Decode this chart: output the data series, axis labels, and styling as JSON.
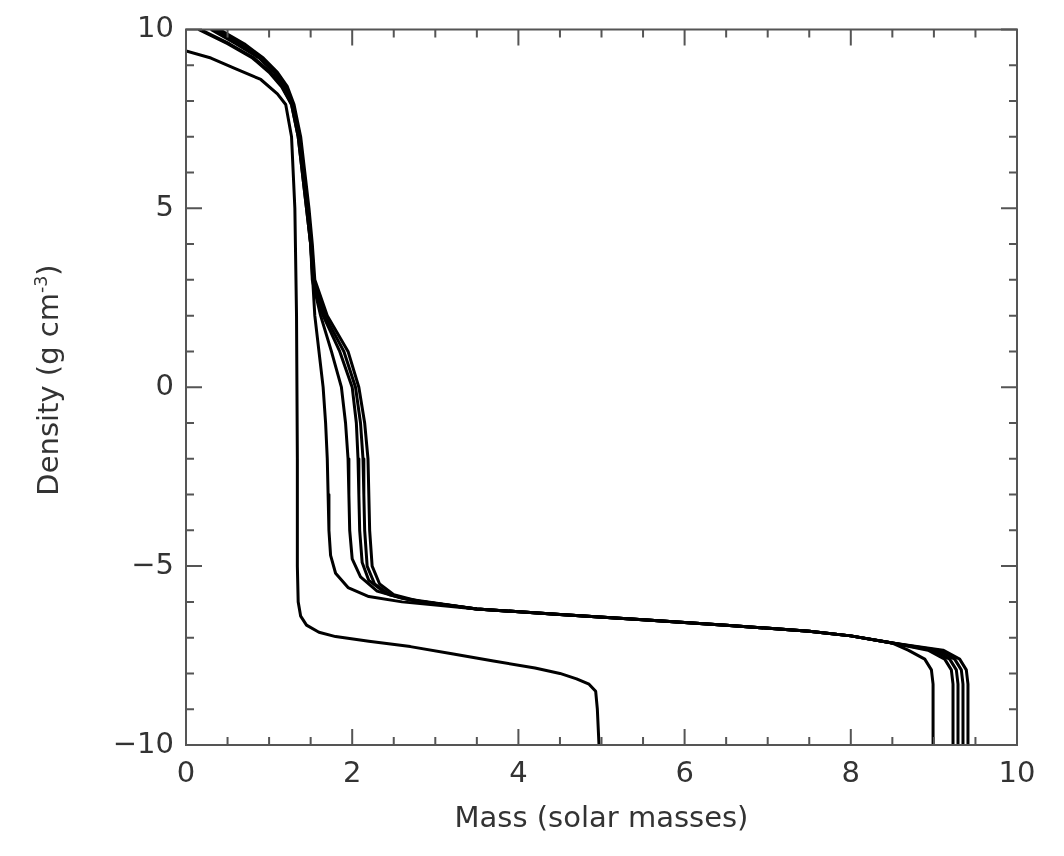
{
  "chart_data": {
    "type": "line",
    "xlabel": "Mass (solar masses)",
    "ylabel": "Density (g cm$^{-3}$)",
    "xlim": [
      0,
      10
    ],
    "ylim": [
      -10,
      10
    ],
    "xticks": [
      0,
      {
        "value": 0.5,
        "label": null
      },
      {
        "value": 1,
        "label": null
      },
      {
        "value": 1.5,
        "label": null
      },
      2,
      {
        "value": 2.5,
        "label": null
      },
      {
        "value": 3,
        "label": null
      },
      {
        "value": 3.5,
        "label": null
      },
      4,
      {
        "value": 4.5,
        "label": null
      },
      {
        "value": 5,
        "label": null
      },
      {
        "value": 5.5,
        "label": null
      },
      6,
      {
        "value": 6.5,
        "label": null
      },
      {
        "value": 7,
        "label": null
      },
      {
        "value": 7.5,
        "label": null
      },
      8,
      {
        "value": 8.5,
        "label": null
      },
      {
        "value": 9,
        "label": null
      },
      {
        "value": 9.5,
        "label": null
      },
      10
    ],
    "yticks": [
      -10,
      {
        "value": -9,
        "label": null
      },
      {
        "value": -8,
        "label": null
      },
      {
        "value": -7,
        "label": null
      },
      {
        "value": -6,
        "label": null
      },
      -5,
      {
        "value": -4,
        "label": null
      },
      {
        "value": -3,
        "label": null
      },
      {
        "value": -2,
        "label": null
      },
      {
        "value": -1,
        "label": null
      },
      0,
      {
        "value": 1,
        "label": null
      },
      {
        "value": 2,
        "label": null
      },
      {
        "value": 3,
        "label": null
      },
      {
        "value": 4,
        "label": null
      },
      5,
      {
        "value": 6,
        "label": null
      },
      {
        "value": 7,
        "label": null
      },
      {
        "value": 8,
        "label": null
      },
      {
        "value": 9,
        "label": null
      },
      10
    ],
    "grid": false,
    "legend": false,
    "marker": "none",
    "line_style": "solid",
    "series": [
      {
        "color": "#000000",
        "x": [
          0,
          0.3,
          0.6,
          0.9,
          1.1,
          1.2,
          1.27,
          1.31,
          1.33,
          1.34,
          1.34,
          1.35,
          1.38,
          1.45,
          1.6,
          1.8,
          2.2,
          2.7,
          3.2,
          3.7,
          4.2,
          4.5,
          4.7,
          4.85,
          4.93,
          4.95,
          4.97
        ],
        "values": [
          9.4,
          9.2,
          8.9,
          8.6,
          8.2,
          7.9,
          7,
          5,
          2,
          -2,
          -5,
          -6,
          -6.4,
          -6.65,
          -6.85,
          -6.97,
          -7.1,
          -7.25,
          -7.45,
          -7.65,
          -7.85,
          -8,
          -8.15,
          -8.3,
          -8.5,
          -9,
          -10
        ]
      },
      {
        "color": "#000000",
        "x": [
          0.15,
          0.5,
          0.8,
          1,
          1.15,
          1.27,
          1.35,
          1.4,
          1.45,
          1.5,
          1.55,
          1.6,
          1.65,
          1.68,
          1.7,
          1.71,
          1.72,
          1.74,
          1.8,
          1.95,
          2.2,
          2.6,
          3.5,
          4.5,
          5.5,
          6.5,
          7.5,
          8,
          8.5,
          8.69,
          8.89,
          8.97,
          8.99,
          8.99
        ],
        "values": [
          10,
          9.6,
          9.2,
          8.8,
          8.4,
          7.9,
          7,
          6,
          5,
          4,
          2,
          1,
          0,
          -1,
          -2,
          -3,
          -4,
          -4.7,
          -5.2,
          -5.6,
          -5.85,
          -6,
          -6.2,
          -6.35,
          -6.5,
          -6.65,
          -6.82,
          -6.95,
          -7.15,
          -7.35,
          -7.6,
          -7.9,
          -8.3,
          -10
        ]
      },
      {
        "color": "#000000",
        "x": [
          0.17,
          0.52,
          0.82,
          1.02,
          1.16,
          1.27,
          1.35,
          1.4,
          1.45,
          1.5,
          1.52,
          1.62,
          1.75,
          1.87,
          1.92,
          1.95,
          1.96,
          1.97,
          2,
          2.1,
          2.3,
          2.6,
          3.5,
          4.5,
          5.5,
          6.5,
          7.5,
          8,
          8.5,
          8.93,
          9.13,
          9.21,
          9.23,
          9.23
        ],
        "values": [
          10,
          9.6,
          9.2,
          8.8,
          8.4,
          7.9,
          7,
          6,
          5,
          4,
          3,
          2,
          1,
          0,
          -1,
          -2,
          -3,
          -4,
          -4.8,
          -5.3,
          -5.7,
          -5.9,
          -6.2,
          -6.35,
          -6.5,
          -6.65,
          -6.82,
          -6.95,
          -7.15,
          -7.35,
          -7.6,
          -7.9,
          -8.3,
          -10
        ]
      },
      {
        "color": "#000000",
        "x": [
          0.3,
          0.6,
          0.88,
          1.06,
          1.18,
          1.28,
          1.36,
          1.41,
          1.46,
          1.5,
          1.53,
          1.65,
          1.85,
          2,
          2.05,
          2.07,
          2.08,
          2.09,
          2.12,
          2.2,
          2.4,
          2.7,
          3.5,
          4.5,
          5.5,
          6.5,
          7.5,
          8,
          8.5,
          8.99,
          9.19,
          9.27,
          9.29,
          9.29
        ],
        "values": [
          10,
          9.6,
          9.2,
          8.8,
          8.4,
          7.9,
          7,
          6,
          5,
          4,
          3,
          2,
          1,
          0,
          -1,
          -2,
          -3,
          -4,
          -4.9,
          -5.4,
          -5.75,
          -5.95,
          -6.2,
          -6.35,
          -6.5,
          -6.65,
          -6.82,
          -6.95,
          -7.15,
          -7.35,
          -7.6,
          -7.9,
          -8.3,
          -10
        ]
      },
      {
        "color": "#000000",
        "x": [
          0.35,
          0.65,
          0.9,
          1.08,
          1.2,
          1.29,
          1.37,
          1.42,
          1.47,
          1.51,
          1.54,
          1.67,
          1.9,
          2.04,
          2.1,
          2.13,
          2.14,
          2.15,
          2.18,
          2.27,
          2.45,
          2.75,
          3.5,
          4.5,
          5.5,
          6.5,
          7.5,
          8,
          8.5,
          9.05,
          9.25,
          9.33,
          9.35,
          9.35
        ],
        "values": [
          10,
          9.6,
          9.2,
          8.8,
          8.4,
          7.9,
          7,
          6,
          5,
          4,
          3,
          2,
          1,
          0,
          -1,
          -2,
          -3,
          -4,
          -5,
          -5.5,
          -5.8,
          -5.97,
          -6.2,
          -6.35,
          -6.5,
          -6.65,
          -6.82,
          -6.95,
          -7.15,
          -7.35,
          -7.6,
          -7.9,
          -8.3,
          -10
        ]
      },
      {
        "color": "#000000",
        "x": [
          0.4,
          0.7,
          0.93,
          1.1,
          1.22,
          1.3,
          1.38,
          1.43,
          1.48,
          1.52,
          1.55,
          1.7,
          1.95,
          2.08,
          2.15,
          2.19,
          2.2,
          2.21,
          2.24,
          2.33,
          2.5,
          2.8,
          3.5,
          4.5,
          5.5,
          6.5,
          7.5,
          8,
          8.5,
          9.11,
          9.31,
          9.39,
          9.41,
          9.41
        ],
        "values": [
          10,
          9.6,
          9.2,
          8.8,
          8.4,
          7.9,
          7,
          6,
          5,
          4,
          3,
          2,
          1,
          0,
          -1,
          -2,
          -3,
          -4,
          -5,
          -5.5,
          -5.8,
          -5.98,
          -6.2,
          -6.35,
          -6.5,
          -6.65,
          -6.82,
          -6.95,
          -7.15,
          -7.35,
          -7.6,
          -7.9,
          -8.3,
          -10
        ]
      }
    ]
  }
}
